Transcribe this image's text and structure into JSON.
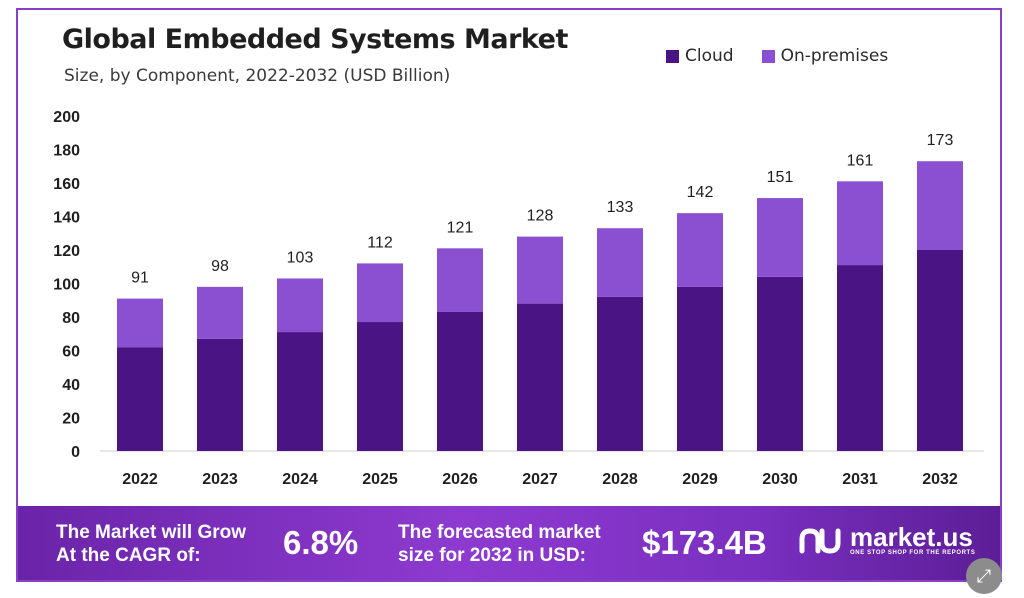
{
  "header": {
    "title": "Global Embedded Systems Market",
    "subtitle": "Size, by Component, 2022-2032 (USD Billion)"
  },
  "legend": [
    {
      "label": "Cloud",
      "color": "#4a1485"
    },
    {
      "label": "On-premises",
      "color": "#8b4fd1"
    }
  ],
  "chart_data": {
    "type": "bar",
    "stacked": true,
    "title": "Global Embedded Systems Market",
    "subtitle": "Size, by Component, 2022-2032 (USD Billion)",
    "categories": [
      "2022",
      "2023",
      "2024",
      "2025",
      "2026",
      "2027",
      "2028",
      "2029",
      "2030",
      "2031",
      "2032"
    ],
    "series": [
      {
        "name": "Cloud",
        "color": "#4a1485",
        "values": [
          62,
          67,
          71,
          77,
          83,
          88,
          92,
          98,
          104,
          111,
          120
        ]
      },
      {
        "name": "On-premises",
        "color": "#8b4fd1",
        "values": [
          29,
          31,
          32,
          35,
          38,
          40,
          41,
          44,
          47,
          50,
          53
        ]
      }
    ],
    "totals": [
      91,
      98,
      103,
      112,
      121,
      128,
      133,
      142,
      151,
      161,
      173
    ],
    "yticks": [
      0,
      20,
      40,
      60,
      80,
      100,
      120,
      140,
      160,
      180,
      200
    ],
    "ylim": [
      0,
      200
    ],
    "xlabel": "",
    "ylabel": "",
    "grid": false,
    "legend_position": "top-right"
  },
  "banner": {
    "cagr_label_line1": "The Market will Grow",
    "cagr_label_line2": "At the CAGR of:",
    "cagr_value": "6.8%",
    "forecast_label_line1": "The forecasted market",
    "forecast_label_line2": "size for 2032 in USD:",
    "forecast_value": "$173.4B",
    "logo_name": "market.us",
    "logo_tagline": "ONE STOP SHOP FOR THE REPORTS"
  },
  "controls": {
    "expand_icon": "expand-icon"
  }
}
